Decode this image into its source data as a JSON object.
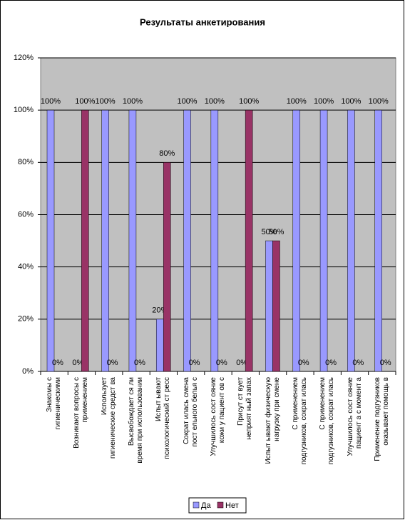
{
  "chart_data": {
    "type": "bar",
    "title": "Результаты анкетирования",
    "categories": [
      "Знакомы с\nгигиеническими",
      "Возникают вопросы с\nприменением",
      "Использует\nгигиенические средст ва",
      "Высвобождает ся ли\nвремя при использовании",
      "Испыт ывают\nпсихологический ст ресс",
      "Сократ илась смена\nпост ельного белья с",
      "Улучшилось сост ояние\nкожи у пациент ов с",
      "Присут ст вует\nнеприят ный запах",
      "Испыт ывают физическую\nнагрузку при смене",
      "С применением\nподгузников, сократ илась",
      "С применением\nподгузников, сократ илась",
      "Улучшилось сост ояние\nпациент а с момент а",
      "Применение подгузников\nоказывает помощь в"
    ],
    "series": [
      {
        "name": "Да",
        "color": "#9999ff",
        "values": [
          100,
          0,
          100,
          100,
          20,
          100,
          100,
          0,
          50,
          100,
          100,
          100,
          100
        ],
        "value_labels": [
          "100%",
          "0%",
          "100%",
          "100%",
          "20%",
          "100%",
          "100%",
          "0%",
          "50%",
          "100%",
          "100%",
          "100%",
          "100%"
        ]
      },
      {
        "name": "Нет",
        "color": "#993366",
        "values": [
          0,
          100,
          0,
          0,
          80,
          0,
          0,
          100,
          50,
          0,
          0,
          0,
          0
        ],
        "value_labels": [
          "0%",
          "100%",
          "0%",
          "0%",
          "80%",
          "0%",
          "0%",
          "100%",
          "50%",
          "0%",
          "0%",
          "0%",
          "0%"
        ]
      }
    ],
    "ylim": [
      0,
      120
    ],
    "yticks": [
      {
        "value": 0,
        "label": "0%"
      },
      {
        "value": 20,
        "label": "20%"
      },
      {
        "value": 40,
        "label": "40%"
      },
      {
        "value": 60,
        "label": "60%"
      },
      {
        "value": 80,
        "label": "80%"
      },
      {
        "value": 100,
        "label": "100%"
      },
      {
        "value": 120,
        "label": "120%"
      }
    ],
    "grid": true,
    "legend": "bottom"
  }
}
